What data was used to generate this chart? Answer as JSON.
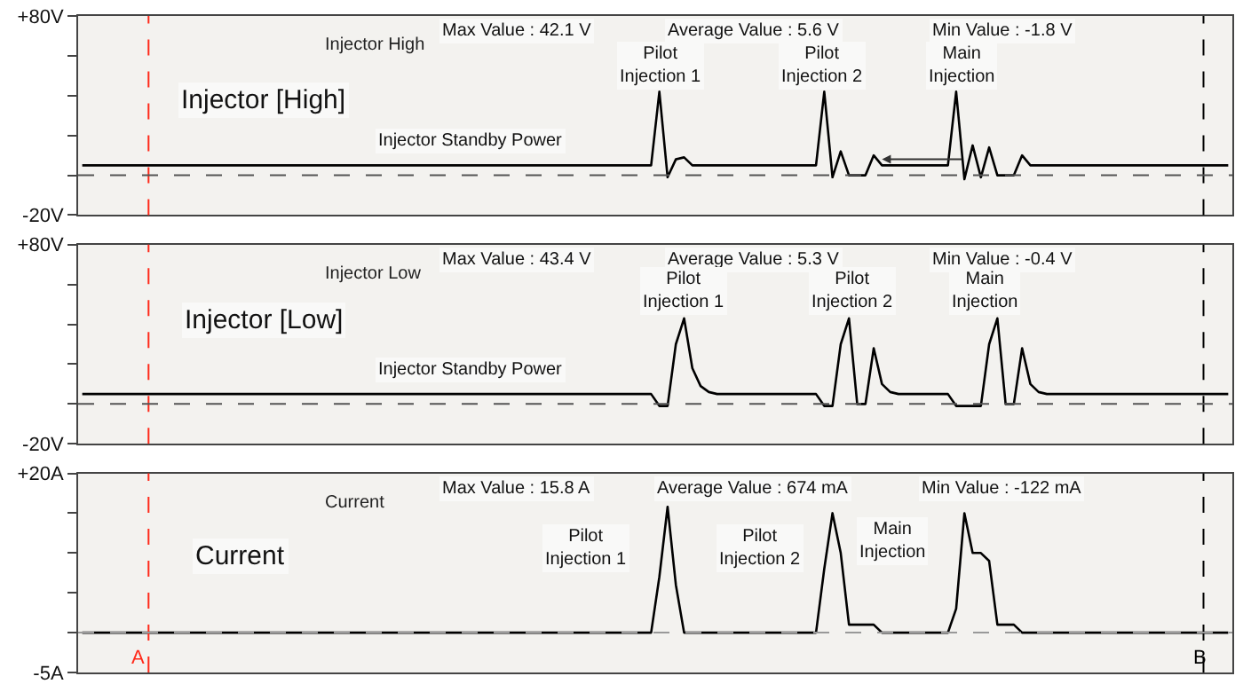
{
  "chart_data": [
    {
      "type": "line",
      "title": "Injector High",
      "categories": [
        null,
        null,
        null,
        null,
        null,
        null,
        null,
        null,
        null,
        null,
        null,
        null,
        null,
        null,
        null,
        null,
        null,
        null,
        null,
        null,
        null,
        null,
        null,
        null,
        null,
        null,
        null,
        null,
        null,
        null,
        null,
        null,
        null,
        null,
        null,
        null,
        null,
        null,
        null,
        null,
        null,
        null,
        null,
        null,
        null,
        null,
        null,
        null,
        null,
        null,
        null,
        null,
        null,
        null,
        null,
        null,
        null,
        null,
        null,
        null,
        null,
        null,
        null,
        null,
        null,
        null,
        null,
        null,
        null,
        null,
        null,
        null,
        null,
        null,
        null,
        null,
        null,
        null,
        null,
        null,
        null,
        null,
        null,
        null,
        null,
        null,
        null,
        null,
        null,
        null,
        null,
        null,
        null,
        null,
        null,
        null,
        null,
        null,
        null,
        null,
        null,
        null,
        null,
        null,
        null,
        null,
        null,
        null,
        null,
        null,
        null,
        null,
        null,
        null,
        null,
        null,
        null,
        null,
        null,
        null,
        null,
        null,
        null,
        null,
        null,
        null,
        null,
        null,
        null,
        null,
        null,
        null,
        null,
        null,
        null,
        null,
        null,
        null,
        null,
        null
      ],
      "series": [
        {
          "color": "#000000",
          "values": [
            5,
            5,
            5,
            5,
            5,
            5,
            5,
            5,
            5,
            5,
            5,
            5,
            5,
            5,
            5,
            5,
            5,
            5,
            5,
            5,
            5,
            5,
            5,
            5,
            5,
            5,
            5,
            5,
            5,
            5,
            5,
            5,
            5,
            5,
            5,
            5,
            5,
            5,
            5,
            5,
            5,
            5,
            5,
            5,
            5,
            5,
            5,
            5,
            5,
            5,
            5,
            5,
            5,
            5,
            5,
            5,
            5,
            5,
            5,
            5,
            5,
            5,
            5,
            5,
            5,
            5,
            5,
            5,
            5,
            5,
            42,
            -1,
            8,
            9,
            5,
            5,
            5,
            5,
            5,
            5,
            5,
            5,
            5,
            5,
            5,
            5,
            5,
            5,
            5,
            5,
            42,
            -1,
            12,
            0,
            0,
            0,
            10,
            5,
            5,
            5,
            5,
            5,
            5,
            5,
            5,
            5,
            42,
            -2,
            15,
            -1,
            14,
            0,
            0,
            0,
            10,
            5,
            5,
            5,
            5,
            5,
            5,
            5,
            5,
            5,
            5,
            5,
            5,
            5,
            5,
            5,
            5,
            5,
            5,
            5,
            5,
            5,
            5,
            5,
            5,
            5
          ]
        }
      ],
      "ylim": [
        -20,
        80
      ],
      "yticks": [
        {
          "value": 80,
          "label": "+80V"
        },
        {
          "value": 60,
          "label": null
        },
        {
          "value": 40,
          "label": null
        },
        {
          "value": 20,
          "label": null
        },
        {
          "value": 0,
          "label": null
        },
        {
          "value": -20,
          "label": "-20V"
        }
      ],
      "ref_lines": [
        {
          "axis": "y",
          "value": 0,
          "color": "#555555",
          "line_style": "dashed"
        }
      ],
      "annotations": [
        "Max Value : 42.1 V",
        "Average Value : 5.6 V",
        "Min Value : -1.8 V",
        "Injector [High]",
        "Injector Standby Power",
        "Pilot\nInjection 1",
        "Pilot\nInjection 2",
        "Main\nInjection"
      ],
      "grid": false,
      "tick_labels": "y"
    },
    {
      "type": "line",
      "title": "Injector Low",
      "categories": [
        null,
        null,
        null,
        null,
        null,
        null,
        null,
        null,
        null,
        null,
        null,
        null,
        null,
        null,
        null,
        null,
        null,
        null,
        null,
        null,
        null,
        null,
        null,
        null,
        null,
        null,
        null,
        null,
        null,
        null,
        null,
        null,
        null,
        null,
        null,
        null,
        null,
        null,
        null,
        null,
        null,
        null,
        null,
        null,
        null,
        null,
        null,
        null,
        null,
        null,
        null,
        null,
        null,
        null,
        null,
        null,
        null,
        null,
        null,
        null,
        null,
        null,
        null,
        null,
        null,
        null,
        null,
        null,
        null,
        null,
        null,
        null,
        null,
        null,
        null,
        null,
        null,
        null,
        null,
        null,
        null,
        null,
        null,
        null,
        null,
        null,
        null,
        null,
        null,
        null,
        null,
        null,
        null,
        null,
        null,
        null,
        null,
        null,
        null,
        null,
        null,
        null,
        null,
        null,
        null,
        null,
        null,
        null,
        null,
        null,
        null,
        null,
        null,
        null,
        null,
        null,
        null,
        null,
        null,
        null,
        null,
        null,
        null,
        null,
        null,
        null,
        null,
        null,
        null,
        null,
        null,
        null,
        null,
        null,
        null,
        null,
        null,
        null,
        null,
        null
      ],
      "series": [
        {
          "color": "#000000",
          "values": [
            5,
            5,
            5,
            5,
            5,
            5,
            5,
            5,
            5,
            5,
            5,
            5,
            5,
            5,
            5,
            5,
            5,
            5,
            5,
            5,
            5,
            5,
            5,
            5,
            5,
            5,
            5,
            5,
            5,
            5,
            5,
            5,
            5,
            5,
            5,
            5,
            5,
            5,
            5,
            5,
            5,
            5,
            5,
            5,
            5,
            5,
            5,
            5,
            5,
            5,
            5,
            5,
            5,
            5,
            5,
            5,
            5,
            5,
            5,
            5,
            5,
            5,
            5,
            5,
            5,
            5,
            5,
            5,
            5,
            5,
            -1,
            -1,
            30,
            43,
            18,
            9,
            6,
            5,
            5,
            5,
            5,
            5,
            5,
            5,
            5,
            5,
            5,
            5,
            5,
            5,
            -1,
            -1,
            30,
            43,
            0,
            0,
            28,
            10,
            6,
            5,
            5,
            5,
            5,
            5,
            5,
            5,
            -1,
            -1,
            -1,
            -1,
            30,
            43,
            0,
            0,
            28,
            10,
            6,
            5,
            5,
            5,
            5,
            5,
            5,
            5,
            5,
            5,
            5,
            5,
            5,
            5,
            5,
            5,
            5,
            5,
            5,
            5,
            5,
            5,
            5,
            5
          ]
        }
      ],
      "ylim": [
        -20,
        80
      ],
      "yticks": [
        {
          "value": 80,
          "label": "+80V"
        },
        {
          "value": 60,
          "label": null
        },
        {
          "value": 40,
          "label": null
        },
        {
          "value": 20,
          "label": null
        },
        {
          "value": 0,
          "label": null
        },
        {
          "value": -20,
          "label": "-20V"
        }
      ],
      "ref_lines": [
        {
          "axis": "y",
          "value": 0,
          "color": "#555555",
          "line_style": "dashed"
        }
      ],
      "annotations": [
        "Max Value : 43.4 V",
        "Average Value : 5.3 V",
        "Min Value : -0.4 V",
        "Injector [Low]",
        "Injector Standby Power",
        "Pilot\nInjection 1",
        "Pilot\nInjection 2",
        "Main\nInjection"
      ],
      "grid": false,
      "tick_labels": "y"
    },
    {
      "type": "line",
      "title": "Current",
      "categories": [
        null,
        null,
        null,
        null,
        null,
        null,
        null,
        null,
        null,
        null,
        null,
        null,
        null,
        null,
        null,
        null,
        null,
        null,
        null,
        null,
        null,
        null,
        null,
        null,
        null,
        null,
        null,
        null,
        null,
        null,
        null,
        null,
        null,
        null,
        null,
        null,
        null,
        null,
        null,
        null,
        null,
        null,
        null,
        null,
        null,
        null,
        null,
        null,
        null,
        null,
        null,
        null,
        null,
        null,
        null,
        null,
        null,
        null,
        null,
        null,
        null,
        null,
        null,
        null,
        null,
        null,
        null,
        null,
        null,
        null,
        null,
        null,
        null,
        null,
        null,
        null,
        null,
        null,
        null,
        null,
        null,
        null,
        null,
        null,
        null,
        null,
        null,
        null,
        null,
        null,
        null,
        null,
        null,
        null,
        null,
        null,
        null,
        null,
        null,
        null,
        null,
        null,
        null,
        null,
        null,
        null,
        null,
        null,
        null,
        null,
        null,
        null,
        null,
        null,
        null,
        null,
        null,
        null,
        null,
        null,
        null,
        null,
        null,
        null,
        null,
        null,
        null,
        null,
        null,
        null,
        null,
        null,
        null,
        null,
        null,
        null,
        null,
        null,
        null,
        null
      ],
      "series": [
        {
          "color": "#000000",
          "values": [
            0,
            0,
            0,
            0,
            0,
            0,
            0,
            0,
            0,
            0,
            0,
            0,
            0,
            0,
            0,
            0,
            0,
            0,
            0,
            0,
            0,
            0,
            0,
            0,
            0,
            0,
            0,
            0,
            0,
            0,
            0,
            0,
            0,
            0,
            0,
            0,
            0,
            0,
            0,
            0,
            0,
            0,
            0,
            0,
            0,
            0,
            0,
            0,
            0,
            0,
            0,
            0,
            0,
            0,
            0,
            0,
            0,
            0,
            0,
            0,
            0,
            0,
            0,
            0,
            0,
            0,
            0,
            0,
            0,
            0,
            7,
            15.8,
            6,
            0,
            0,
            0,
            0,
            0,
            0,
            0,
            0,
            0,
            0,
            0,
            0,
            0,
            0,
            0,
            0,
            0,
            8,
            15,
            10,
            1,
            1,
            1,
            1,
            0,
            0,
            0,
            0,
            0,
            0,
            0,
            0,
            0,
            3,
            15,
            10,
            10,
            9,
            1,
            1,
            1,
            0,
            0,
            0,
            0,
            0,
            0,
            0,
            0,
            0,
            0,
            0,
            0,
            0,
            0,
            0,
            0,
            0,
            0,
            0,
            0,
            0,
            0,
            0,
            0,
            0,
            0
          ]
        }
      ],
      "ylim": [
        -5,
        20
      ],
      "yticks": [
        {
          "value": 20,
          "label": "+20A"
        },
        {
          "value": 15,
          "label": null
        },
        {
          "value": 10,
          "label": null
        },
        {
          "value": 5,
          "label": null
        },
        {
          "value": 0,
          "label": null
        },
        {
          "value": -5,
          "label": "-5A"
        }
      ],
      "ref_lines": [
        {
          "axis": "y",
          "value": 0,
          "color": "#999999",
          "line_style": "dashed"
        }
      ],
      "annotations": [
        "Max Value : 15.8 A",
        "Average Value : 674 mA",
        "Min Value : -122 mA",
        "Current",
        "Pilot\nInjection 1",
        "Pilot\nInjection 2",
        "Main\nInjection",
        "A",
        "B"
      ],
      "grid": false,
      "tick_labels": "y"
    }
  ]
}
